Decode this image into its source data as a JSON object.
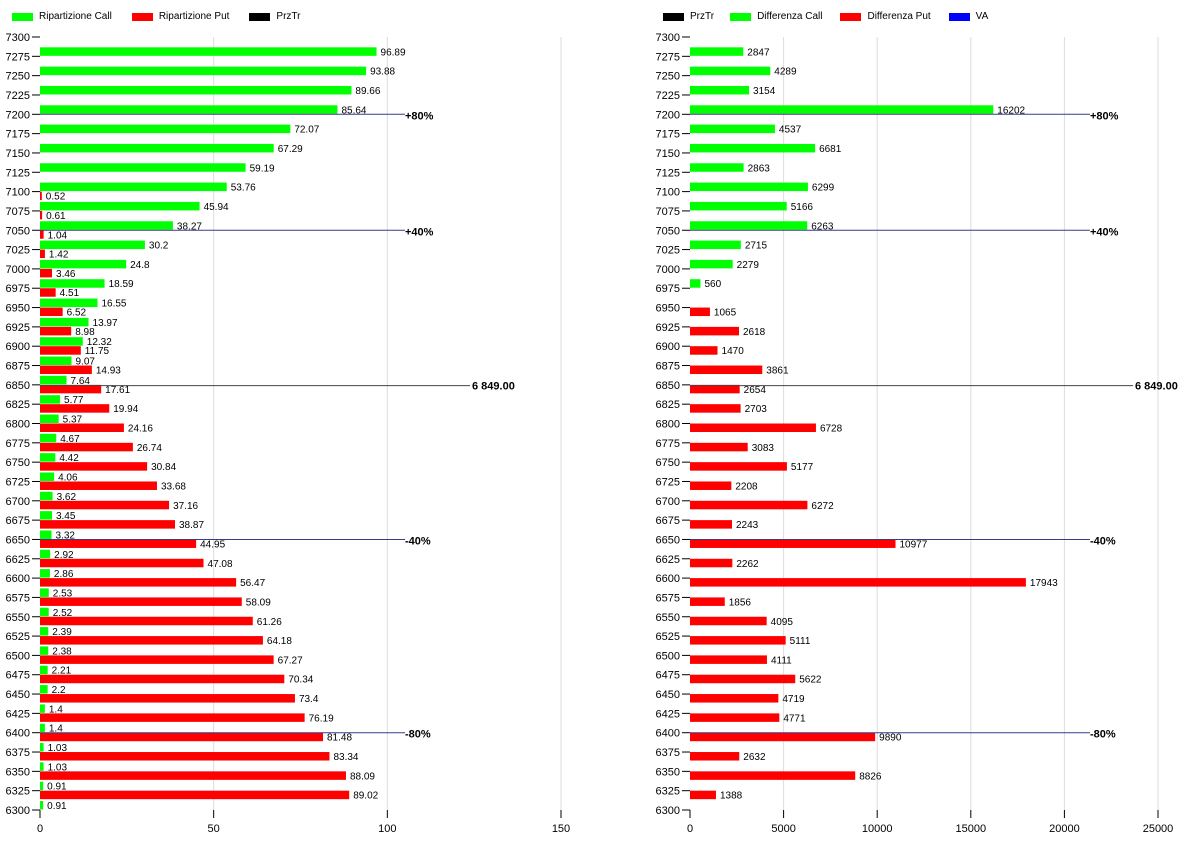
{
  "chart_data": [
    {
      "type": "bar",
      "orientation": "horizontal",
      "legend": [
        {
          "name": "Ripartizione Call",
          "color": "#00ff00"
        },
        {
          "name": "Ripartizione Put",
          "color": "#ff0000"
        },
        {
          "name": "PrzTr",
          "color": "#000000"
        }
      ],
      "ylim": [
        6300,
        7300
      ],
      "ytick_step": 25,
      "xlim": [
        0,
        150
      ],
      "xticks": [
        0,
        50,
        100,
        150
      ],
      "grid": "vertical",
      "legend_position": "top-left",
      "categories": [
        7275,
        7250,
        7225,
        7200,
        7175,
        7150,
        7125,
        7100,
        7075,
        7050,
        7025,
        7000,
        6975,
        6950,
        6925,
        6900,
        6875,
        6850,
        6825,
        6800,
        6775,
        6750,
        6725,
        6700,
        6675,
        6650,
        6625,
        6600,
        6575,
        6550,
        6525,
        6500,
        6475,
        6450,
        6425,
        6400,
        6375,
        6350,
        6325,
        6300
      ],
      "series": [
        {
          "name": "Ripartizione Call",
          "color": "#00ff00",
          "position": "above",
          "values": [
            96.89,
            93.88,
            89.66,
            85.64,
            72.07,
            67.29,
            59.19,
            53.76,
            45.94,
            38.27,
            30.2,
            24.8,
            18.59,
            16.55,
            13.97,
            12.32,
            9.07,
            7.64,
            5.77,
            5.37,
            4.67,
            4.42,
            4.06,
            3.62,
            3.45,
            3.32,
            2.92,
            2.86,
            2.53,
            2.52,
            2.39,
            2.38,
            2.21,
            2.2,
            1.4,
            1.4,
            1.03,
            1.03,
            0.91,
            0.91
          ]
        },
        {
          "name": "Ripartizione Put",
          "color": "#ff0000",
          "position": "below",
          "values": [
            null,
            null,
            null,
            null,
            null,
            null,
            null,
            0.52,
            0.61,
            1.04,
            1.42,
            3.46,
            4.51,
            6.52,
            8.98,
            11.75,
            14.93,
            17.61,
            19.94,
            24.16,
            26.74,
            30.84,
            33.68,
            37.16,
            38.87,
            44.95,
            47.08,
            56.47,
            58.09,
            61.26,
            64.18,
            67.27,
            70.34,
            73.4,
            76.19,
            81.48,
            83.34,
            88.09,
            89.02,
            null
          ]
        }
      ],
      "reference_lines": [
        {
          "value": 7200,
          "label": "+80%",
          "color": "#3a3a8c"
        },
        {
          "value": 7050,
          "label": "+40%",
          "color": "#3a3a8c"
        },
        {
          "value": 6650,
          "label": "-40%",
          "color": "#3a3a8c"
        },
        {
          "value": 6400,
          "label": "-80%",
          "color": "#3a3a8c"
        }
      ],
      "price_line": {
        "value": 6849,
        "label": "6 849.00",
        "color": "#000000"
      }
    },
    {
      "type": "bar",
      "orientation": "horizontal",
      "legend": [
        {
          "name": "PrzTr",
          "color": "#000000"
        },
        {
          "name": "Differenza Call",
          "color": "#00ff00"
        },
        {
          "name": "Differenza Put",
          "color": "#ff0000"
        },
        {
          "name": "VA",
          "color": "#0000ff"
        }
      ],
      "ylim": [
        6300,
        7300
      ],
      "ytick_step": 25,
      "xlim": [
        0,
        25000
      ],
      "xticks": [
        0,
        5000,
        10000,
        15000,
        20000,
        25000
      ],
      "grid": "vertical",
      "legend_position": "top-left",
      "categories": [
        7275,
        7250,
        7225,
        7200,
        7175,
        7150,
        7125,
        7100,
        7075,
        7050,
        7025,
        7000,
        6975,
        6950,
        6925,
        6900,
        6875,
        6850,
        6825,
        6800,
        6775,
        6750,
        6725,
        6700,
        6675,
        6650,
        6625,
        6600,
        6575,
        6550,
        6525,
        6500,
        6475,
        6450,
        6425,
        6400,
        6375,
        6350,
        6325,
        6300
      ],
      "series": [
        {
          "name": "Differenza Call",
          "color": "#00ff00",
          "position": "above",
          "values": [
            2847,
            4289,
            3154,
            16202,
            4537,
            6681,
            2863,
            6299,
            5166,
            6263,
            2715,
            2279,
            560,
            null,
            null,
            null,
            null,
            null,
            null,
            null,
            null,
            null,
            null,
            null,
            null,
            null,
            null,
            null,
            null,
            null,
            null,
            null,
            null,
            null,
            null,
            null,
            null,
            null,
            null,
            null
          ]
        },
        {
          "name": "Differenza Put",
          "color": "#ff0000",
          "position": "below",
          "values": [
            null,
            null,
            null,
            null,
            null,
            null,
            null,
            null,
            null,
            null,
            null,
            null,
            null,
            1065,
            2618,
            1470,
            3861,
            2654,
            2703,
            6728,
            3083,
            5177,
            2208,
            6272,
            2243,
            10977,
            2262,
            17943,
            1856,
            4095,
            5111,
            4111,
            5622,
            4719,
            4771,
            9890,
            2632,
            8826,
            1388,
            null
          ]
        }
      ],
      "reference_lines": [
        {
          "value": 7200,
          "label": "+80%",
          "color": "#3a3a8c"
        },
        {
          "value": 7050,
          "label": "+40%",
          "color": "#3a3a8c"
        },
        {
          "value": 6650,
          "label": "-40%",
          "color": "#3a3a8c"
        },
        {
          "value": 6400,
          "label": "-80%",
          "color": "#3a3a8c"
        }
      ],
      "price_line": {
        "value": 6849,
        "label": "6 849.00",
        "color": "#000000"
      }
    }
  ]
}
